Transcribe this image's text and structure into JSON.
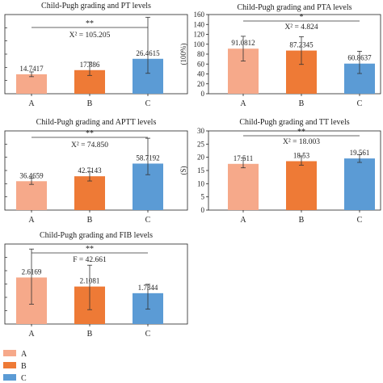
{
  "colors": {
    "A": "#f6a98a",
    "B": "#ee7a36",
    "C": "#5b9bd5",
    "axis": "#222222",
    "text": "#222222"
  },
  "legend": {
    "items": [
      "A",
      "B",
      "C"
    ]
  },
  "chart_data": [
    {
      "type": "bar",
      "title": "Child-Pugh grading and PT levels",
      "categories": [
        "A",
        "B",
        "C"
      ],
      "values": [
        14.7417,
        17.886,
        26.4615
      ],
      "value_labels": [
        "14.7417",
        "17.886",
        "26.4615"
      ],
      "errors_up": [
        1.8,
        6.0,
        31.5
      ],
      "errors_down": [
        1.8,
        4.0,
        11.0
      ],
      "ylim": [
        0,
        60
      ],
      "yticks": [],
      "ylabel": "",
      "stat_label": "X² = 105.205",
      "significance": "**",
      "grid": false
    },
    {
      "type": "bar",
      "title": "Child-Pugh grading and PTA levels",
      "categories": [
        "A",
        "B",
        "C"
      ],
      "values": [
        91.0812,
        87.2345,
        60.8637
      ],
      "value_labels": [
        "91.0812",
        "87.2345",
        "60.8637"
      ],
      "errors_up": [
        25,
        28,
        25
      ],
      "errors_down": [
        25,
        28,
        20
      ],
      "ylim": [
        0,
        160
      ],
      "yticks": [
        "0",
        "20",
        "40",
        "60",
        "80",
        "100",
        "120",
        "140",
        "160"
      ],
      "ylabel": "(100%)",
      "stat_label": "X² = 4.824",
      "significance": "*",
      "grid": false
    },
    {
      "type": "bar",
      "title": "Child-Pugh grading and APTT levels",
      "categories": [
        "A",
        "B",
        "C"
      ],
      "values": [
        36.4659,
        42.7143,
        58.7192
      ],
      "value_labels": [
        "36.4659",
        "42.7143",
        "58.7192"
      ],
      "errors_up": [
        4,
        6,
        32
      ],
      "errors_down": [
        4,
        6,
        14
      ],
      "ylim": [
        0,
        100
      ],
      "yticks": [],
      "ylabel": "",
      "stat_label": "X² = 74.850",
      "significance": "**",
      "grid": false
    },
    {
      "type": "bar",
      "title": "Child-Pugh grading and TT levels",
      "categories": [
        "A",
        "B",
        "C"
      ],
      "values": [
        17.511,
        18.53,
        19.561
      ],
      "value_labels": [
        "17.511",
        "18.53",
        "19.561"
      ],
      "errors_up": [
        2.3,
        2.0,
        1.5
      ],
      "errors_down": [
        1.5,
        1.5,
        1.5
      ],
      "ylim": [
        0,
        30
      ],
      "yticks": [
        "0",
        "5",
        "10",
        "15",
        "20",
        "25",
        "30"
      ],
      "ylabel": "(S)",
      "stat_label": "X² = 18.003",
      "significance": "**",
      "grid": false
    },
    {
      "type": "bar",
      "title": "Child-Pugh grading and FIB levels",
      "categories": [
        "A",
        "B",
        "C"
      ],
      "values": [
        2.6169,
        2.1081,
        1.7344
      ],
      "value_labels": [
        "2.6169",
        "2.1081",
        "1.7344"
      ],
      "errors_up": [
        1.6,
        1.2,
        0.5
      ],
      "errors_down": [
        1.5,
        1.3,
        0.9
      ],
      "ylim": [
        0,
        4.5
      ],
      "yticks": [],
      "ylabel": "",
      "stat_label": "F = 42.661",
      "significance": "**",
      "grid": false
    }
  ]
}
